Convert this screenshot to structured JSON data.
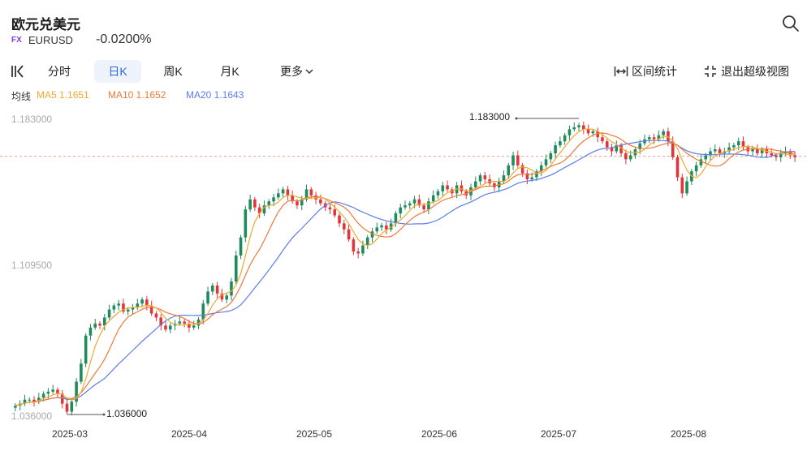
{
  "header": {
    "title": "欧元兑美元",
    "badge": "FX",
    "symbol": "EURUSD",
    "change": "-0.0200%"
  },
  "toolbar": {
    "tabs": [
      {
        "label": "分时",
        "active": false
      },
      {
        "label": "日K",
        "active": true
      },
      {
        "label": "周K",
        "active": false
      },
      {
        "label": "月K",
        "active": false
      },
      {
        "label": "更多",
        "active": false
      }
    ],
    "range_stats": "区间统计",
    "exit_fullscreen": "退出超级视图"
  },
  "indicators": {
    "label": "均线",
    "ma5": "MA5 1.1651",
    "ma10": "MA10 1.1652",
    "ma20": "MA20 1.1643"
  },
  "colors": {
    "up": "#1f8a5b",
    "down": "#e0363a",
    "ma5": "#f0a830",
    "ma10": "#ee7a3a",
    "ma20": "#5b7ee8",
    "active_tab": "#2f6bd8"
  },
  "chart_data": {
    "type": "candlestick",
    "y_ticks": [
      "1.183000",
      "1.109500",
      "1.036000"
    ],
    "ylim": [
      1.036,
      1.183
    ],
    "x_ticks": [
      "2025-03",
      "2025-04",
      "2025-05",
      "2025-06",
      "2025-07",
      "2025-08"
    ],
    "max_label": "1.183000",
    "min_label": "1.036000",
    "last_price": 1.1645,
    "close": [
      1.04,
      1.041,
      1.043,
      1.043,
      1.042,
      1.044,
      1.046,
      1.047,
      1.048,
      1.046,
      1.041,
      1.037,
      1.042,
      1.052,
      1.061,
      1.075,
      1.079,
      1.081,
      1.08,
      1.084,
      1.088,
      1.09,
      1.091,
      1.087,
      1.088,
      1.089,
      1.091,
      1.093,
      1.09,
      1.086,
      1.084,
      1.08,
      1.078,
      1.08,
      1.081,
      1.082,
      1.081,
      1.079,
      1.08,
      1.083,
      1.091,
      1.097,
      1.1,
      1.096,
      1.093,
      1.095,
      1.102,
      1.115,
      1.124,
      1.138,
      1.143,
      1.139,
      1.136,
      1.14,
      1.142,
      1.144,
      1.146,
      1.148,
      1.145,
      1.142,
      1.14,
      1.143,
      1.148,
      1.145,
      1.143,
      1.141,
      1.139,
      1.138,
      1.135,
      1.131,
      1.128,
      1.123,
      1.117,
      1.116,
      1.12,
      1.124,
      1.127,
      1.129,
      1.13,
      1.128,
      1.131,
      1.136,
      1.139,
      1.14,
      1.141,
      1.143,
      1.14,
      1.138,
      1.142,
      1.145,
      1.147,
      1.15,
      1.148,
      1.146,
      1.15,
      1.147,
      1.145,
      1.149,
      1.152,
      1.155,
      1.153,
      1.151,
      1.149,
      1.152,
      1.155,
      1.16,
      1.165,
      1.16,
      1.156,
      1.153,
      1.154,
      1.157,
      1.16,
      1.163,
      1.166,
      1.17,
      1.172,
      1.175,
      1.178,
      1.179,
      1.18,
      1.178,
      1.176,
      1.177,
      1.174,
      1.172,
      1.169,
      1.167,
      1.17,
      1.166,
      1.163,
      1.165,
      1.168,
      1.171,
      1.173,
      1.174,
      1.173,
      1.175,
      1.177,
      1.172,
      1.164,
      1.154,
      1.146,
      1.152,
      1.157,
      1.16,
      1.163,
      1.165,
      1.167,
      1.168,
      1.166,
      1.167,
      1.169,
      1.17,
      1.172,
      1.169,
      1.167,
      1.168,
      1.166,
      1.168,
      1.166,
      1.165,
      1.164,
      1.166,
      1.167,
      1.165,
      1.164
    ]
  }
}
